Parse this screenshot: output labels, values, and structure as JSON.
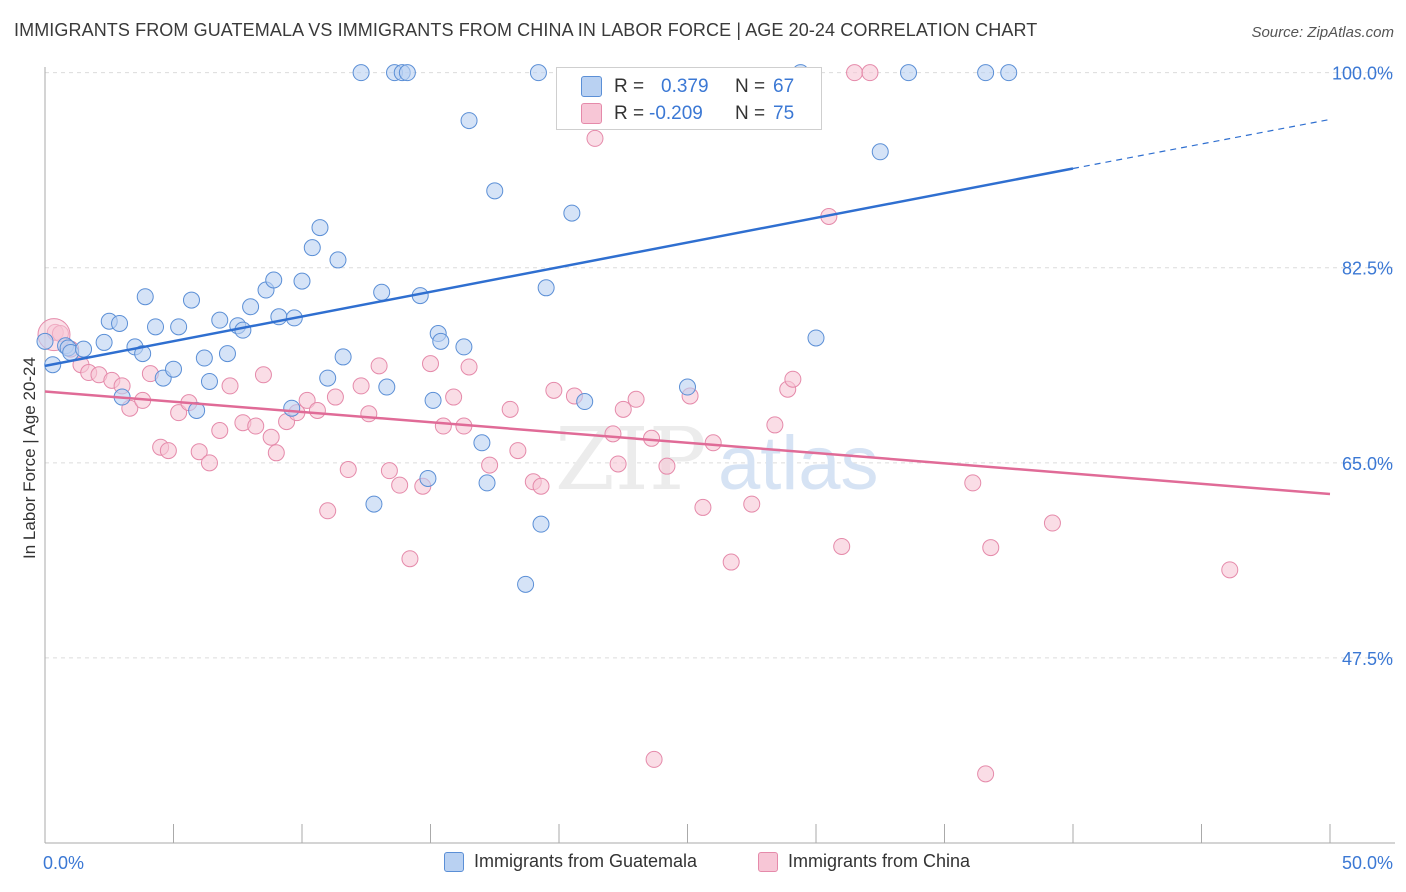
{
  "header": {
    "title": "IMMIGRANTS FROM GUATEMALA VS IMMIGRANTS FROM CHINA IN LABOR FORCE | AGE 20-24 CORRELATION CHART",
    "source": "Source: ZipAtlas.com"
  },
  "watermark": {
    "zip": "ZIP",
    "atlas": "atlas"
  },
  "stats": {
    "r_label": "R =",
    "n_label": "N =",
    "rows": [
      {
        "r": "0.379",
        "n": "67"
      },
      {
        "r": "-0.209",
        "n": "75"
      }
    ]
  },
  "colors": {
    "blue_fill": "#b9d1f2",
    "blue_stroke": "#5b8fd6",
    "blue_line": "#2f6fd0",
    "pink_fill": "#f7c6d6",
    "pink_stroke": "#e58aaa",
    "pink_line": "#e06b97",
    "axis_text": "#3b78d4"
  },
  "chart_data": {
    "type": "scatter",
    "ylabel": "In Labor Force | Age 20-24",
    "x_tick_labels": [
      "0.0%",
      "50.0%"
    ],
    "y_tick_labels": [
      "100.0%",
      "82.5%",
      "65.0%",
      "47.5%"
    ],
    "y_ticks": [
      100.0,
      82.5,
      65.0,
      47.5
    ],
    "xlim": [
      0,
      50
    ],
    "ylim": [
      30.9,
      102.3
    ],
    "grid": true,
    "legend_position": "bottom",
    "series": [
      {
        "name": "Immigrants from Guatemala",
        "color": "blue",
        "R": 0.379,
        "N": 67,
        "trend": {
          "x": [
            0,
            40.0
          ],
          "y": [
            73.7,
            91.4
          ]
        },
        "trend_dashed": {
          "x": [
            40.0,
            50.0
          ],
          "y": [
            91.4,
            95.8
          ]
        },
        "points": [
          [
            0.3,
            73.8
          ],
          [
            0.8,
            75.5
          ],
          [
            0.9,
            75.3
          ],
          [
            1.0,
            74.9
          ],
          [
            1.5,
            75.2
          ],
          [
            2.3,
            75.8
          ],
          [
            2.5,
            77.7
          ],
          [
            2.9,
            77.5
          ],
          [
            3.0,
            70.9
          ],
          [
            3.5,
            75.4
          ],
          [
            3.8,
            74.8
          ],
          [
            3.9,
            79.9
          ],
          [
            4.3,
            77.2
          ],
          [
            4.6,
            72.6
          ],
          [
            5.0,
            73.4
          ],
          [
            5.2,
            77.2
          ],
          [
            5.7,
            79.6
          ],
          [
            5.9,
            69.7
          ],
          [
            6.2,
            74.4
          ],
          [
            6.4,
            72.3
          ],
          [
            6.8,
            77.8
          ],
          [
            7.1,
            74.8
          ],
          [
            7.5,
            77.3
          ],
          [
            7.7,
            76.9
          ],
          [
            8.0,
            79.0
          ],
          [
            8.6,
            80.5
          ],
          [
            8.9,
            81.4
          ],
          [
            9.1,
            78.1
          ],
          [
            9.6,
            69.9
          ],
          [
            9.7,
            78.0
          ],
          [
            10.0,
            81.3
          ],
          [
            10.4,
            84.3
          ],
          [
            10.7,
            86.1
          ],
          [
            11.0,
            72.6
          ],
          [
            11.4,
            83.2
          ],
          [
            11.6,
            74.5
          ],
          [
            12.3,
            100.0
          ],
          [
            12.8,
            61.3
          ],
          [
            13.1,
            80.3
          ],
          [
            13.3,
            71.8
          ],
          [
            13.6,
            100.0
          ],
          [
            13.9,
            100.0
          ],
          [
            14.1,
            100.0
          ],
          [
            14.6,
            80.0
          ],
          [
            14.9,
            63.6
          ],
          [
            15.1,
            70.6
          ],
          [
            15.3,
            76.6
          ],
          [
            15.4,
            75.9
          ],
          [
            16.3,
            75.4
          ],
          [
            16.5,
            95.7
          ],
          [
            17.0,
            66.8
          ],
          [
            17.2,
            63.2
          ],
          [
            17.5,
            89.4
          ],
          [
            19.2,
            100.0
          ],
          [
            19.3,
            59.5
          ],
          [
            19.5,
            80.7
          ],
          [
            20.5,
            87.4
          ],
          [
            21.0,
            70.5
          ],
          [
            25.0,
            71.8
          ],
          [
            29.4,
            100.0
          ],
          [
            30.0,
            76.2
          ],
          [
            32.5,
            92.9
          ],
          [
            33.6,
            100.0
          ],
          [
            36.6,
            100.0
          ],
          [
            37.5,
            100.0
          ],
          [
            18.7,
            54.1
          ],
          [
            0.0,
            75.9
          ]
        ]
      },
      {
        "name": "Immigrants from China",
        "color": "pink",
        "R": -0.209,
        "N": 75,
        "trend": {
          "x": [
            0,
            50.0
          ],
          "y": [
            71.4,
            62.2
          ]
        },
        "points": [
          [
            0.4,
            76.7
          ],
          [
            0.6,
            76.6
          ],
          [
            1.0,
            75.2
          ],
          [
            1.4,
            73.8
          ],
          [
            1.7,
            73.1
          ],
          [
            2.1,
            72.9
          ],
          [
            2.6,
            72.4
          ],
          [
            3.0,
            71.9
          ],
          [
            3.3,
            69.9
          ],
          [
            3.8,
            70.6
          ],
          [
            4.1,
            73.0
          ],
          [
            4.5,
            66.4
          ],
          [
            4.8,
            66.1
          ],
          [
            5.2,
            69.5
          ],
          [
            5.6,
            70.4
          ],
          [
            6.0,
            66.0
          ],
          [
            6.4,
            65.0
          ],
          [
            6.8,
            67.9
          ],
          [
            7.2,
            71.9
          ],
          [
            7.7,
            68.6
          ],
          [
            8.2,
            68.3
          ],
          [
            8.5,
            72.9
          ],
          [
            8.8,
            67.3
          ],
          [
            9.0,
            65.9
          ],
          [
            9.4,
            68.7
          ],
          [
            9.8,
            69.5
          ],
          [
            10.2,
            70.6
          ],
          [
            10.6,
            69.7
          ],
          [
            11.0,
            60.7
          ],
          [
            11.3,
            70.9
          ],
          [
            11.8,
            64.4
          ],
          [
            12.3,
            71.9
          ],
          [
            12.6,
            69.4
          ],
          [
            13.0,
            73.7
          ],
          [
            13.4,
            64.3
          ],
          [
            13.8,
            63.0
          ],
          [
            14.2,
            56.4
          ],
          [
            14.7,
            62.9
          ],
          [
            15.0,
            73.9
          ],
          [
            15.5,
            68.3
          ],
          [
            15.9,
            70.9
          ],
          [
            16.3,
            68.3
          ],
          [
            16.5,
            73.6
          ],
          [
            17.3,
            64.8
          ],
          [
            18.1,
            69.8
          ],
          [
            18.4,
            66.1
          ],
          [
            19.0,
            63.3
          ],
          [
            19.3,
            62.9
          ],
          [
            19.8,
            71.5
          ],
          [
            20.6,
            71.0
          ],
          [
            21.4,
            94.1
          ],
          [
            22.1,
            67.6
          ],
          [
            22.3,
            64.9
          ],
          [
            22.5,
            69.8
          ],
          [
            23.0,
            70.7
          ],
          [
            23.6,
            67.2
          ],
          [
            24.2,
            64.7
          ],
          [
            25.1,
            71.0
          ],
          [
            25.6,
            61.0
          ],
          [
            26.0,
            66.8
          ],
          [
            26.7,
            56.1
          ],
          [
            27.5,
            61.3
          ],
          [
            28.4,
            68.4
          ],
          [
            28.9,
            71.6
          ],
          [
            29.1,
            72.5
          ],
          [
            30.5,
            87.1
          ],
          [
            31.0,
            57.5
          ],
          [
            31.5,
            100.0
          ],
          [
            32.1,
            100.0
          ],
          [
            36.1,
            63.2
          ],
          [
            36.8,
            57.4
          ],
          [
            39.2,
            59.6
          ],
          [
            46.1,
            55.4
          ],
          [
            36.6,
            37.1
          ],
          [
            23.7,
            38.4
          ]
        ]
      }
    ]
  }
}
